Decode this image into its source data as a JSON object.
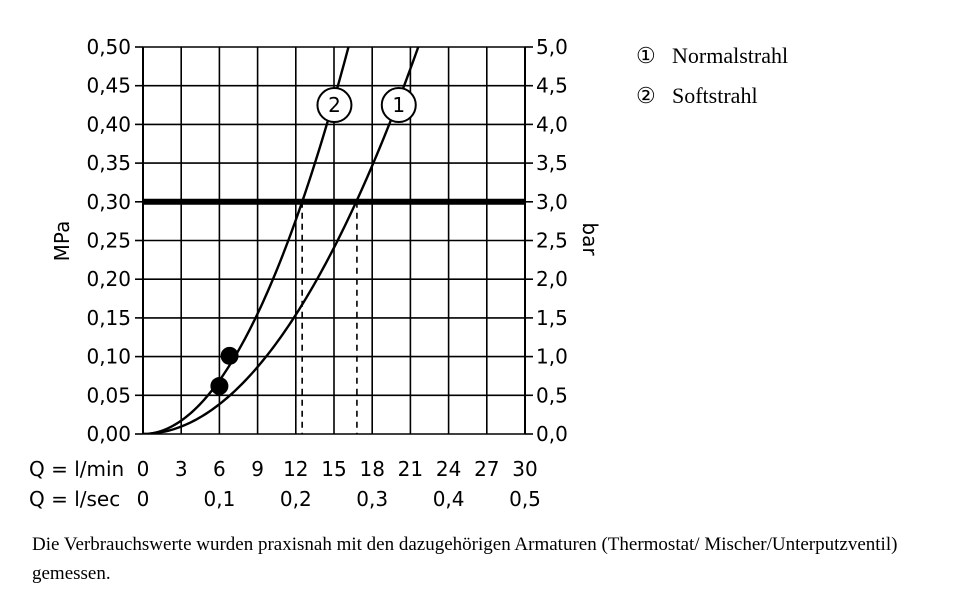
{
  "chart_data": {
    "type": "line",
    "left_axis": {
      "label": "MPa",
      "ticks": [
        "0,00",
        "0,05",
        "0,10",
        "0,15",
        "0,20",
        "0,25",
        "0,30",
        "0,35",
        "0,40",
        "0,45",
        "0,50"
      ],
      "range": [
        0,
        0.5
      ]
    },
    "right_axis": {
      "label": "bar",
      "ticks": [
        "0,0",
        "0,5",
        "1,0",
        "1,5",
        "2,0",
        "2,5",
        "3,0",
        "3,5",
        "4,0",
        "4,5",
        "5,0"
      ],
      "range": [
        0,
        5
      ]
    },
    "x_axis_lmin": {
      "label": "Q = l/min",
      "ticks": [
        "0",
        "3",
        "6",
        "9",
        "12",
        "15",
        "18",
        "21",
        "24",
        "27",
        "30"
      ],
      "range": [
        0,
        30
      ]
    },
    "x_axis_lsec": {
      "label": "Q = l/sec",
      "ticks": [
        "0",
        "0,1",
        "0,2",
        "0,3",
        "0,4",
        "0,5"
      ]
    },
    "reference_line": {
      "y": 0.3
    },
    "series": [
      {
        "marker": "1",
        "legend": "Normalstrahl",
        "k": 0.00107,
        "reference_x": 16.8,
        "point": {
          "x": 6.0,
          "y": 0.062
        }
      },
      {
        "marker": "2",
        "legend": "Softstrahl",
        "k": 0.00192,
        "reference_x": 12.5,
        "point": {
          "x": 6.8,
          "y": 0.101
        }
      }
    ],
    "legend_placement": "top-right",
    "grid": true
  },
  "legend": [
    {
      "marker": "①",
      "text": "Normalstrahl"
    },
    {
      "marker": "②",
      "text": "Softstrahl"
    }
  ],
  "footnote": "Die Verbrauchswerte wurden praxisnah mit den dazugehörigen Armaturen (Thermostat/ Mischer/Unterputzventil) gemessen."
}
